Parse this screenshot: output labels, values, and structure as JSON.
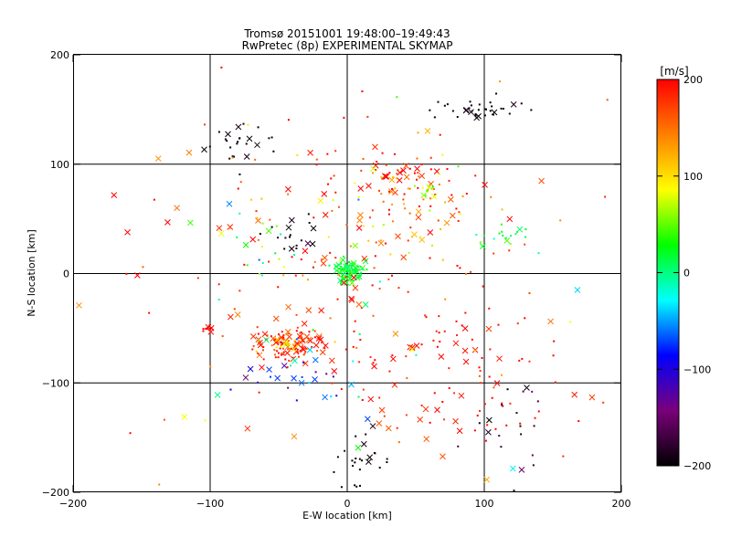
{
  "chart_data": {
    "type": "scatter",
    "title": "Tromsø 20151001 19:48:00–19:49:43",
    "subtitle": "RwPretec (8p) EXPERIMENTAL SKYMAP",
    "xlabel": "E-W location [km]",
    "ylabel": "N-S location [km]",
    "xlim": [
      -200,
      200
    ],
    "ylim": [
      -200,
      200
    ],
    "xticks": [
      -200,
      -100,
      0,
      100,
      200
    ],
    "yticks": [
      -200,
      -100,
      0,
      100,
      200
    ],
    "xtick_labels": [
      "−200",
      "−100",
      "0",
      "100",
      "200"
    ],
    "ytick_labels": [
      "−200",
      "−100",
      "0",
      "100",
      "200"
    ],
    "grid_lines": [
      -100,
      0,
      100
    ],
    "colorbar": {
      "label": "[m/s]",
      "range": [
        -200,
        200
      ],
      "ticks": [
        200,
        100,
        0,
        -100,
        -200
      ],
      "tick_labels": [
        "200",
        "100",
        "0",
        "−100",
        "−200"
      ],
      "colors": [
        "#000000",
        "#7a007a",
        "#0000ff",
        "#00ffff",
        "#00ff00",
        "#ffff00",
        "#ff8000",
        "#ff0000"
      ]
    },
    "marker_types": [
      "dot",
      "cross"
    ],
    "clusters": [
      {
        "x": -40,
        "y": -65,
        "sx": 12,
        "sy": 8,
        "n": 120,
        "v": 185,
        "vs": 20
      },
      {
        "x": -42,
        "y": -65,
        "sx": 5,
        "sy": 4,
        "n": 20,
        "v": 110,
        "vs": 20
      },
      {
        "x": 2,
        "y": 2,
        "sx": 5,
        "sy": 5,
        "n": 90,
        "v": 20,
        "vs": 15
      },
      {
        "x": 50,
        "y": 85,
        "sx": 20,
        "sy": 12,
        "n": 60,
        "v": 180,
        "vs": 40
      },
      {
        "x": 58,
        "y": 75,
        "sx": 5,
        "sy": 4,
        "n": 14,
        "v": 60,
        "vs": 15
      },
      {
        "x": -100,
        "y": -50,
        "sx": 2,
        "sy": 2,
        "n": 10,
        "v": 200,
        "vs": 5
      },
      {
        "x": 100,
        "y": 150,
        "sx": 15,
        "sy": 5,
        "n": 35,
        "v": -195,
        "vs": 5
      },
      {
        "x": -80,
        "y": 120,
        "sx": 15,
        "sy": 10,
        "n": 25,
        "v": -195,
        "vs": 5
      },
      {
        "x": 10,
        "y": -175,
        "sx": 10,
        "sy": 10,
        "n": 25,
        "v": -195,
        "vs": 5
      },
      {
        "x": 70,
        "y": -90,
        "sx": 45,
        "sy": 40,
        "n": 110,
        "v": 190,
        "vs": 15
      },
      {
        "x": 10,
        "y": 40,
        "sx": 50,
        "sy": 50,
        "n": 120,
        "v": 170,
        "vs": 40
      },
      {
        "x": 0,
        "y": 0,
        "sx": 100,
        "sy": 100,
        "n": 120,
        "v": 140,
        "vs": 90
      },
      {
        "x": -35,
        "y": -95,
        "sx": 20,
        "sy": 15,
        "n": 30,
        "v": -80,
        "vs": 50
      },
      {
        "x": -40,
        "y": 40,
        "sx": 10,
        "sy": 10,
        "n": 18,
        "v": -190,
        "vs": 10
      },
      {
        "x": 115,
        "y": 35,
        "sx": 15,
        "sy": 6,
        "n": 18,
        "v": 20,
        "vs": 20
      },
      {
        "x": 120,
        "y": -130,
        "sx": 15,
        "sy": 30,
        "n": 20,
        "v": -180,
        "vs": 20
      },
      {
        "x": -70,
        "y": 30,
        "sx": 20,
        "sy": 20,
        "n": 20,
        "v": 30,
        "vs": 40
      }
    ]
  }
}
